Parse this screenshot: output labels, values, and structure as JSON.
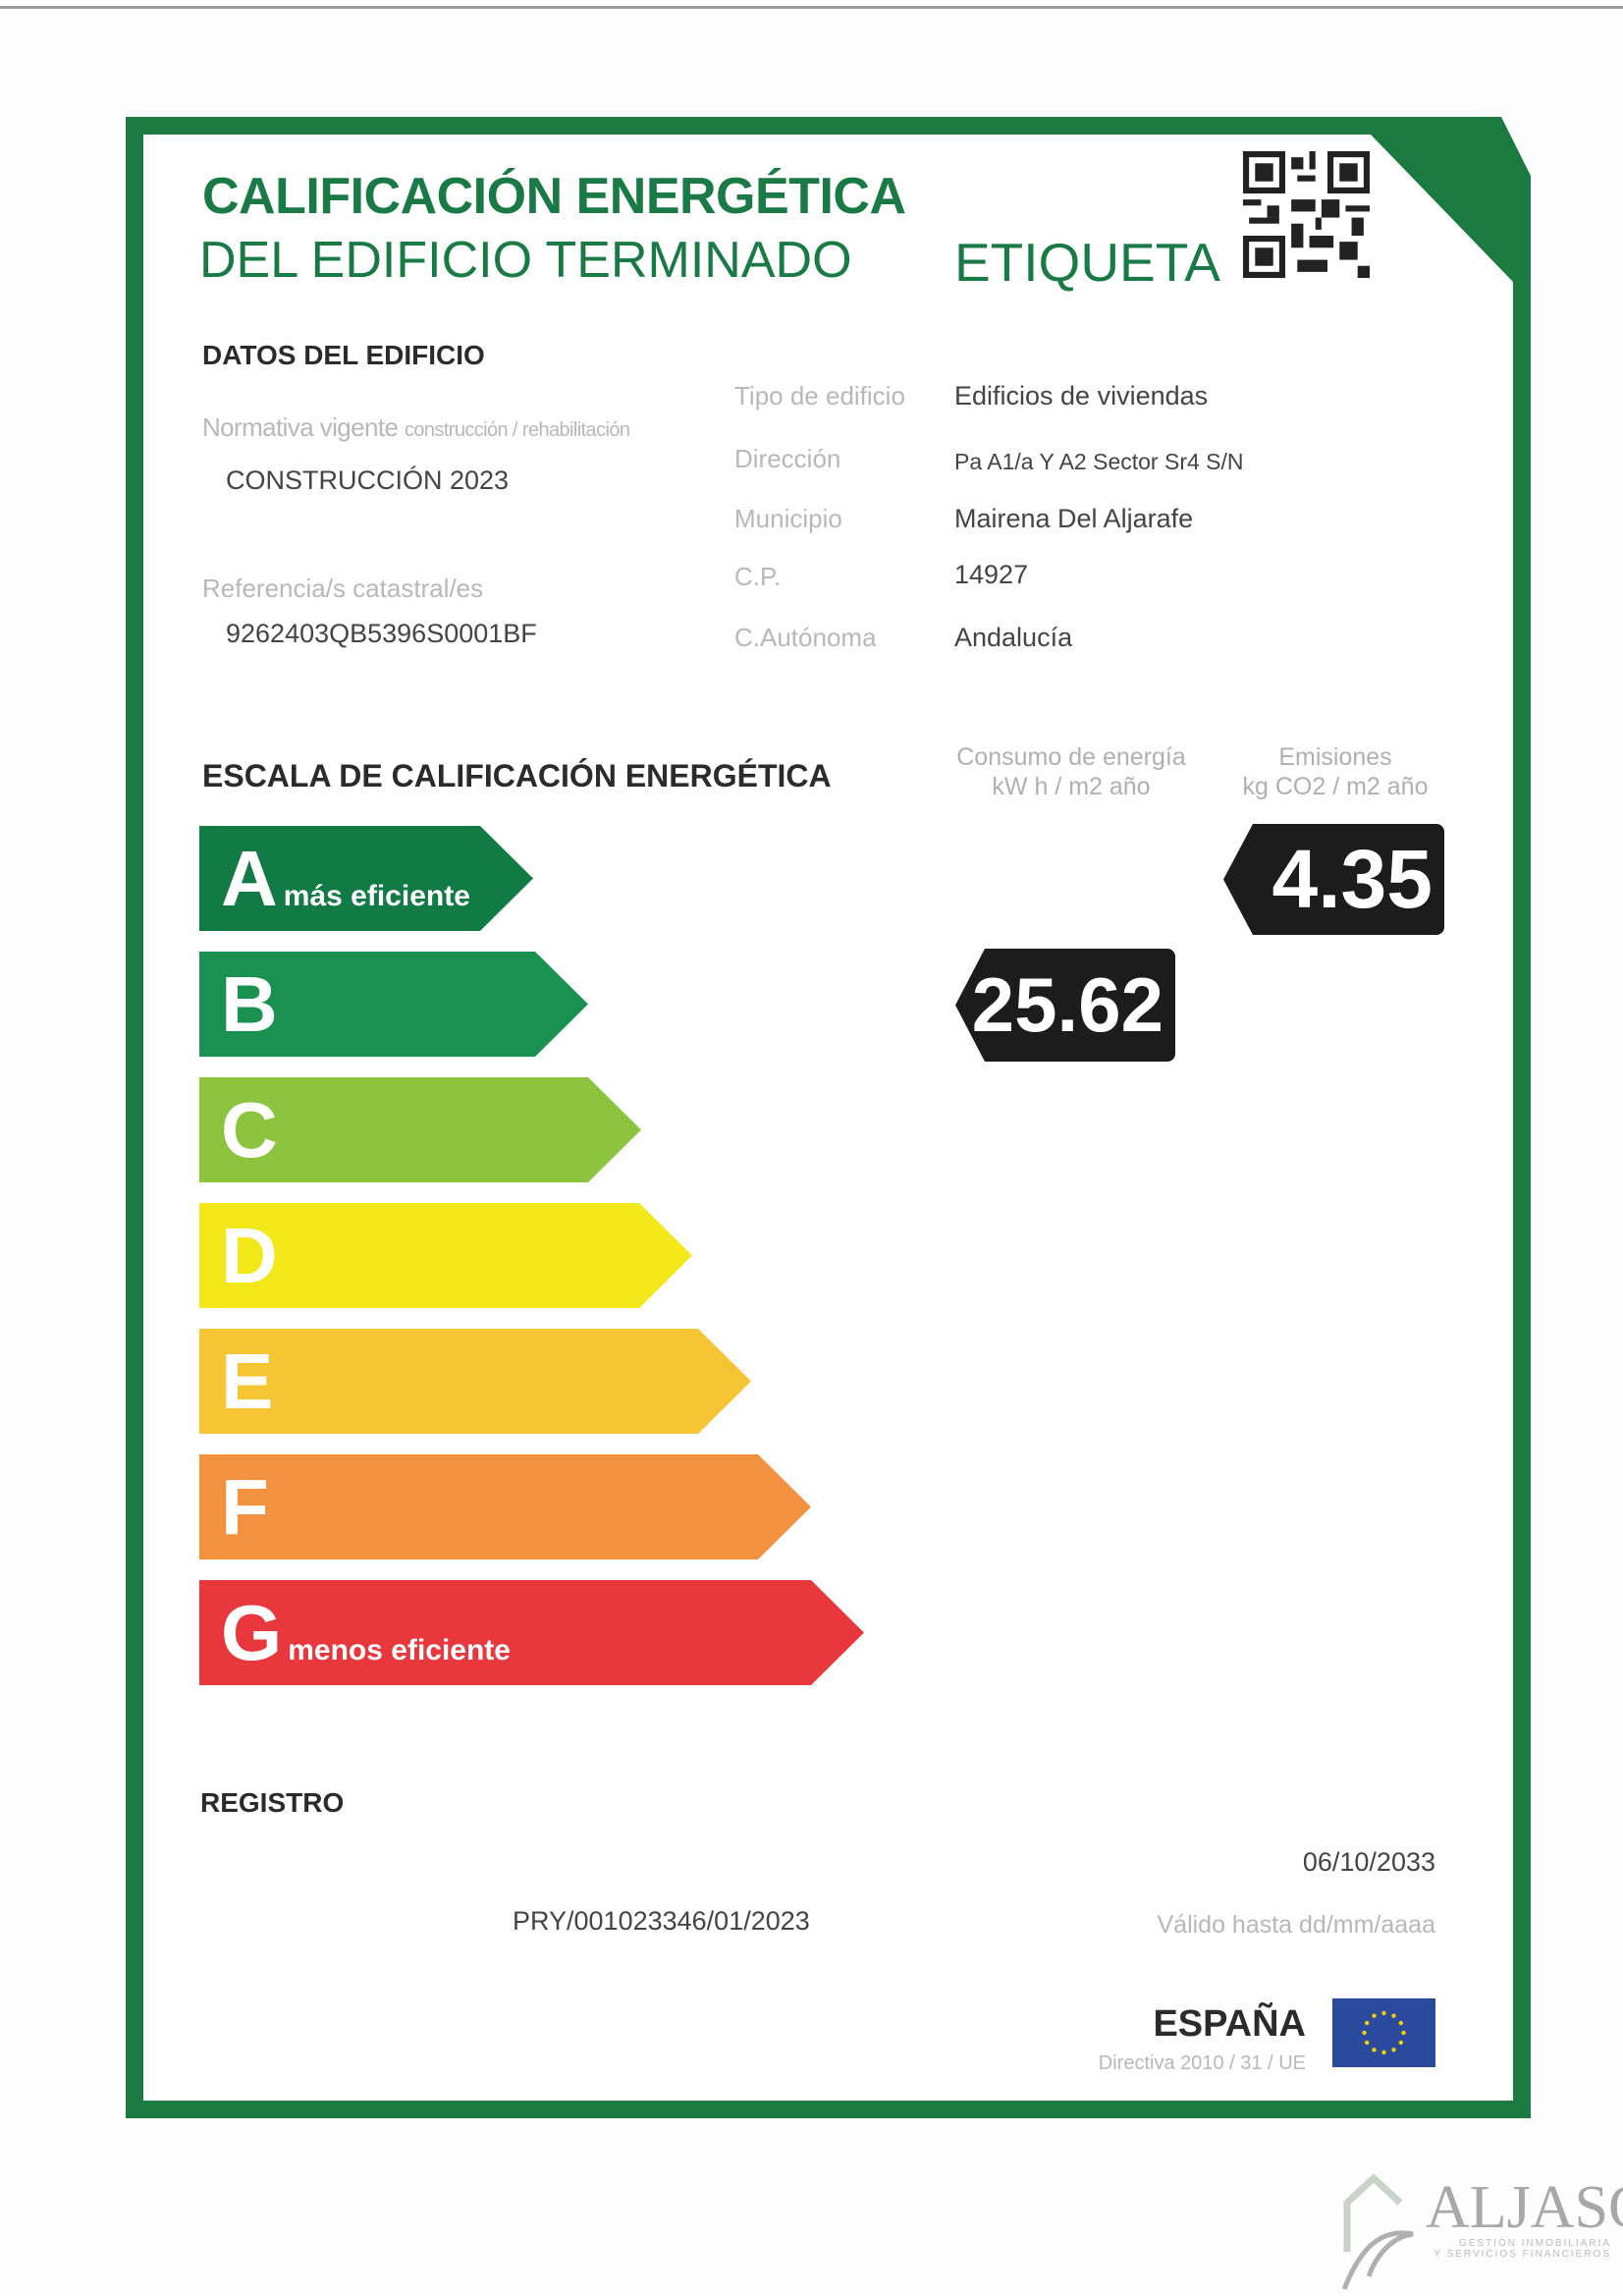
{
  "header": {
    "title_line1": "CALIFICACIÓN ENERGÉTICA",
    "title_line2": "DEL EDIFICIO TERMINADO",
    "label": "ETIQUETA"
  },
  "building": {
    "section_title": "DATOS DEL EDIFICIO",
    "normativa_label": "Normativa vigente",
    "normativa_sub": "construcción / rehabilitación",
    "normativa_value": "CONSTRUCCIÓN 2023",
    "referencia_label": "Referencia/s catastral/es",
    "referencia_value": "9262403QB5396S0001BF",
    "fields": [
      {
        "label": "Tipo de edificio",
        "value": "Edificios de viviendas"
      },
      {
        "label": "Dirección",
        "value": "Pa A1/a Y A2 Sector Sr4 S/N"
      },
      {
        "label": "Municipio",
        "value": "Mairena Del Aljarafe"
      },
      {
        "label": "C.P.",
        "value": "14927"
      },
      {
        "label": "C.Autónoma",
        "value": "Andalucía"
      }
    ]
  },
  "scale": {
    "title": "ESCALA DE CALIFICACIÓN ENERGÉTICA",
    "consumo_header": "Consumo de energía",
    "consumo_unit": "kW h / m2 año",
    "emisiones_header": "Emisiones",
    "emisiones_unit": "kg CO2 / m2 año",
    "classes": [
      {
        "letter": "A",
        "note": "más eficiente",
        "color": "#127a45"
      },
      {
        "letter": "B",
        "note": "",
        "color": "#1a9150"
      },
      {
        "letter": "C",
        "note": "",
        "color": "#8cc43f"
      },
      {
        "letter": "D",
        "note": "",
        "color": "#f2e81a"
      },
      {
        "letter": "E",
        "note": "",
        "color": "#f6c533"
      },
      {
        "letter": "F",
        "note": "",
        "color": "#f29140"
      },
      {
        "letter": "G",
        "note": "menos eficiente",
        "color": "#e8373d"
      }
    ],
    "consumo_value": "25.62",
    "consumo_class": "B",
    "emisiones_value": "4.35",
    "emisiones_class": "A"
  },
  "registro": {
    "title": "REGISTRO",
    "number": "PRY/001023346/01/2023",
    "valid_date": "06/10/2033",
    "valid_label": "Válido hasta dd/mm/aaaa"
  },
  "footer": {
    "country": "ESPAÑA",
    "directive": "Directiva 2010 / 31 / UE"
  },
  "watermark": {
    "brand": "ALJASOL",
    "tagline1": "GESTIÓN INMOBILIARIA",
    "tagline2": "Y SERVICIOS FINANCIEROS"
  },
  "colors": {
    "frame": "#1a7a3f",
    "badge": "#1c1c1c"
  }
}
